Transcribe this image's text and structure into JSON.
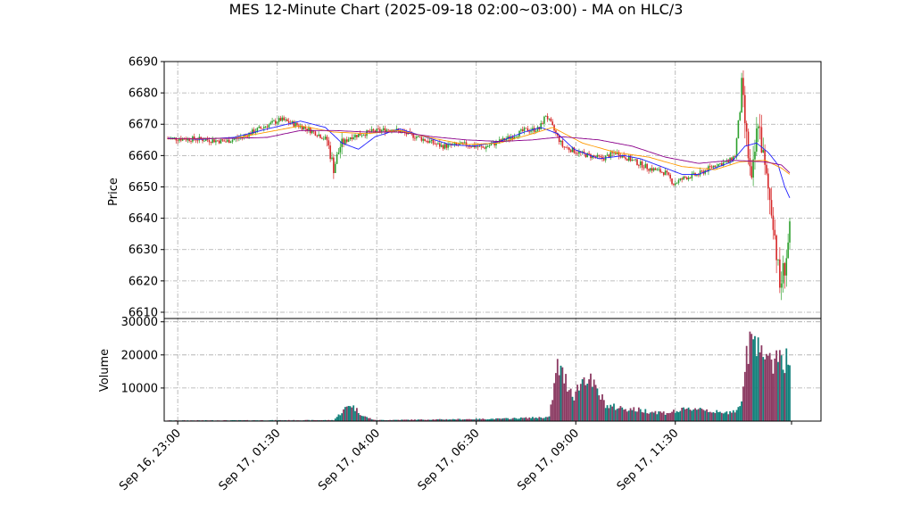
{
  "chart_data": {
    "type": "candlestick",
    "title": "MES 12-Minute Chart (2025-09-18 02:00~03:00) - MA on HLC/3",
    "price_panel": {
      "ylabel": "Price",
      "ylim": [
        6608,
        6690
      ],
      "yticks": [
        6610,
        6620,
        6630,
        6640,
        6650,
        6660,
        6670,
        6680,
        6690
      ],
      "grid": true
    },
    "volume_panel": {
      "ylabel": "Volume",
      "ylim": [
        0,
        31000
      ],
      "yticks": [
        10000,
        20000,
        30000
      ],
      "grid": true
    },
    "x_ticks": [
      "Sep 16, 23:00",
      "Sep 17, 01:30",
      "Sep 17, 04:00",
      "Sep 17, 06:30",
      "Sep 17, 09:00",
      "Sep 17, 11:30"
    ],
    "ma_path_nodes": {
      "ma_short": [
        [
          0,
          6665.5
        ],
        [
          20,
          6665.2
        ],
        [
          40,
          6665.8
        ],
        [
          60,
          6668.5
        ],
        [
          80,
          6671
        ],
        [
          95,
          6669
        ],
        [
          105,
          6664
        ],
        [
          115,
          6662
        ],
        [
          125,
          6666
        ],
        [
          140,
          6668.5
        ],
        [
          155,
          6666
        ],
        [
          170,
          6663.5
        ],
        [
          185,
          6663
        ],
        [
          200,
          6664.5
        ],
        [
          215,
          6667.5
        ],
        [
          225,
          6669
        ],
        [
          235,
          6667
        ],
        [
          245,
          6662
        ],
        [
          260,
          6659
        ],
        [
          275,
          6660
        ],
        [
          285,
          6659
        ],
        [
          300,
          6656
        ],
        [
          310,
          6654
        ],
        [
          320,
          6654
        ],
        [
          330,
          6656
        ],
        [
          340,
          6658
        ],
        [
          348,
          6663
        ],
        [
          355,
          6664
        ],
        [
          362,
          6661
        ],
        [
          368,
          6657
        ],
        [
          372,
          6650
        ],
        [
          375,
          6646.5
        ]
      ],
      "ma_mid": [
        [
          0,
          6665.3
        ],
        [
          40,
          6665.5
        ],
        [
          60,
          6667.5
        ],
        [
          80,
          6669.5
        ],
        [
          100,
          6667.5
        ],
        [
          120,
          6667
        ],
        [
          140,
          6668
        ],
        [
          160,
          6665.5
        ],
        [
          180,
          6663.5
        ],
        [
          200,
          6664
        ],
        [
          220,
          6667
        ],
        [
          232,
          6669
        ],
        [
          250,
          6664
        ],
        [
          270,
          6661
        ],
        [
          290,
          6659.5
        ],
        [
          310,
          6656.5
        ],
        [
          330,
          6655.5
        ],
        [
          345,
          6658
        ],
        [
          360,
          6658.5
        ],
        [
          370,
          6656
        ],
        [
          375,
          6654
        ]
      ],
      "ma_long": [
        [
          0,
          6665.4
        ],
        [
          40,
          6665.5
        ],
        [
          60,
          6665.8
        ],
        [
          80,
          6668
        ],
        [
          100,
          6668
        ],
        [
          120,
          6667.5
        ],
        [
          140,
          6667.5
        ],
        [
          160,
          6666
        ],
        [
          180,
          6665
        ],
        [
          200,
          6664.5
        ],
        [
          220,
          6665
        ],
        [
          238,
          6666
        ],
        [
          260,
          6665
        ],
        [
          280,
          6663
        ],
        [
          300,
          6659.5
        ],
        [
          320,
          6657.5
        ],
        [
          340,
          6658.5
        ],
        [
          360,
          6658
        ],
        [
          370,
          6657
        ],
        [
          375,
          6654.5
        ]
      ]
    },
    "price_anchors": [
      [
        0,
        6665.5
      ],
      [
        20,
        6665.2
      ],
      [
        35,
        6664.5
      ],
      [
        45,
        6666
      ],
      [
        55,
        6668.5
      ],
      [
        68,
        6671.5
      ],
      [
        82,
        6669
      ],
      [
        90,
        6667
      ],
      [
        96,
        6665
      ],
      [
        100,
        6656
      ],
      [
        104,
        6663
      ],
      [
        110,
        6666
      ],
      [
        122,
        6667.5
      ],
      [
        135,
        6668.5
      ],
      [
        150,
        6666
      ],
      [
        165,
        6663
      ],
      [
        180,
        6663.5
      ],
      [
        190,
        6662.5
      ],
      [
        205,
        6665.5
      ],
      [
        215,
        6668
      ],
      [
        224,
        6668.5
      ],
      [
        228,
        6673
      ],
      [
        232,
        6669
      ],
      [
        238,
        6663
      ],
      [
        250,
        6660.5
      ],
      [
        262,
        6659
      ],
      [
        270,
        6661
      ],
      [
        280,
        6658.5
      ],
      [
        290,
        6656
      ],
      [
        300,
        6654.5
      ],
      [
        305,
        6651
      ],
      [
        312,
        6653
      ],
      [
        320,
        6654
      ],
      [
        330,
        6657
      ],
      [
        338,
        6658
      ],
      [
        342,
        6660
      ],
      [
        346,
        6681
      ],
      [
        349,
        6665
      ],
      [
        352,
        6650
      ],
      [
        356,
        6672
      ],
      [
        360,
        6655
      ],
      [
        365,
        6640
      ],
      [
        369,
        6618
      ],
      [
        372,
        6625
      ],
      [
        375,
        6635
      ]
    ],
    "volume_anchors": [
      [
        0,
        200
      ],
      [
        100,
        300
      ],
      [
        110,
        5200
      ],
      [
        118,
        1500
      ],
      [
        125,
        300
      ],
      [
        200,
        700
      ],
      [
        230,
        1200
      ],
      [
        235,
        16500
      ],
      [
        245,
        8000
      ],
      [
        252,
        14000
      ],
      [
        265,
        4500
      ],
      [
        290,
        3000
      ],
      [
        300,
        2500
      ],
      [
        320,
        4000
      ],
      [
        335,
        2200
      ],
      [
        345,
        4000
      ],
      [
        350,
        22000
      ],
      [
        356,
        27000
      ],
      [
        362,
        16000
      ],
      [
        368,
        21000
      ],
      [
        375,
        17500
      ]
    ],
    "colors": {
      "up": "#2ca02c",
      "down": "#d62728",
      "ma_short": "#1f1fff",
      "ma_mid": "#ff9900",
      "ma_long": "#8b008b",
      "vol_up": "#11807a",
      "vol_down": "#8b3a62",
      "grid": "#aaaaaa"
    }
  }
}
